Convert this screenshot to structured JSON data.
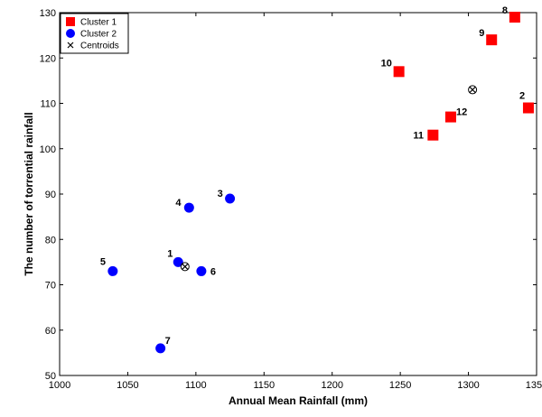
{
  "chart_data": {
    "type": "scatter",
    "xlabel": "Annual Mean Rainfall (mm)",
    "ylabel": "The number of torrential rainfall",
    "xlim": [
      1000,
      1350
    ],
    "ylim": [
      50,
      130
    ],
    "xticks": [
      1000,
      1050,
      1100,
      1150,
      1200,
      1250,
      1300,
      1350
    ],
    "yticks": [
      50,
      60,
      70,
      80,
      90,
      100,
      110,
      120,
      130
    ],
    "grid": false,
    "legend": "top-left",
    "series": [
      {
        "name": "Cluster 1",
        "marker": "square",
        "color": "#ff0000",
        "points": [
          {
            "label": "8",
            "x": 1334,
            "y": 129
          },
          {
            "label": "9",
            "x": 1317,
            "y": 124
          },
          {
            "label": "10",
            "x": 1249,
            "y": 117
          },
          {
            "label": "2",
            "x": 1344,
            "y": 109
          },
          {
            "label": "12",
            "x": 1287,
            "y": 107
          },
          {
            "label": "11",
            "x": 1274,
            "y": 103
          }
        ]
      },
      {
        "name": "Cluster 2",
        "marker": "circle",
        "color": "#0000ff",
        "points": [
          {
            "label": "3",
            "x": 1125,
            "y": 89
          },
          {
            "label": "4",
            "x": 1095,
            "y": 87
          },
          {
            "label": "1",
            "x": 1087,
            "y": 75
          },
          {
            "label": "5",
            "x": 1039,
            "y": 73
          },
          {
            "label": "6",
            "x": 1104,
            "y": 73
          },
          {
            "label": "7",
            "x": 1074,
            "y": 56
          }
        ]
      },
      {
        "name": "Centroids",
        "marker": "x",
        "color": "#000000",
        "points": [
          {
            "label": "",
            "x": 1303,
            "y": 113
          },
          {
            "label": "",
            "x": 1092,
            "y": 74
          }
        ]
      }
    ]
  }
}
